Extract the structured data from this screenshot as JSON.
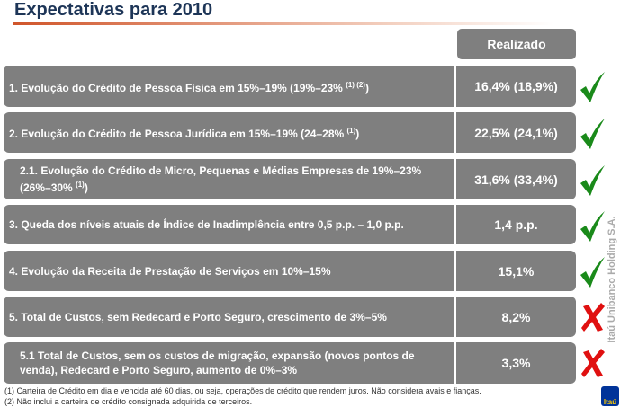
{
  "title": "Expectativas para 2010",
  "header": "Realizado",
  "rows": [
    {
      "label": "1. Evolução do Crédito de Pessoa Física em 15%–19% (19%–23%",
      "sup": "(1) (2)",
      "suffix": ")",
      "value": "16,4% (18,9%)",
      "status": "check"
    },
    {
      "label": "2. Evolução do Crédito de Pessoa Jurídica em 15%–19% (24–28%",
      "sup": "(1)",
      "suffix": ")",
      "value": "22,5% (24,1%)",
      "status": "check"
    },
    {
      "label": "2.1. Evolução do Crédito de Micro, Pequenas e Médias Empresas de 19%–23% (26%–30%",
      "sup": "(1)",
      "suffix": ")",
      "value": "31,6% (33,4%)",
      "status": "check"
    },
    {
      "label": "3. Queda dos níveis atuais de Índice de Inadimplência entre 0,5 p.p. – 1,0 p.p.",
      "sup": "",
      "suffix": "",
      "value": "1,4 p.p.",
      "status": "check"
    },
    {
      "label": "4. Evolução da Receita de Prestação de Serviços em 10%–15%",
      "sup": "",
      "suffix": "",
      "value": "15,1%",
      "status": "check"
    },
    {
      "label": "5. Total de Custos, sem Redecard e Porto Seguro, crescimento de 3%–5%",
      "sup": "",
      "suffix": "",
      "value": "8,2%",
      "status": "cross"
    },
    {
      "label": "5.1 Total de Custos, sem os custos de migração, expansão (novos pontos de venda), Redecard e Porto Seguro, aumento de 0%–3%",
      "sup": "",
      "suffix": "",
      "value": "3,3%",
      "status": "cross"
    }
  ],
  "footnotes": [
    "(1) Carteira de Crédito em dia e vencida até 60 dias, ou seja, operações de crédito que rendem juros. Não considera avais e fianças.",
    "(2) Não inclui a carteira de crédito consignada adquirida de terceiros."
  ],
  "side_text": "Itaú Unibanco Holding S.A.",
  "logo": "Itaú",
  "colors": {
    "check": "#1a8a1a",
    "cross": "#e01010",
    "box": "#7f7f7f",
    "title": "#1d3557"
  }
}
